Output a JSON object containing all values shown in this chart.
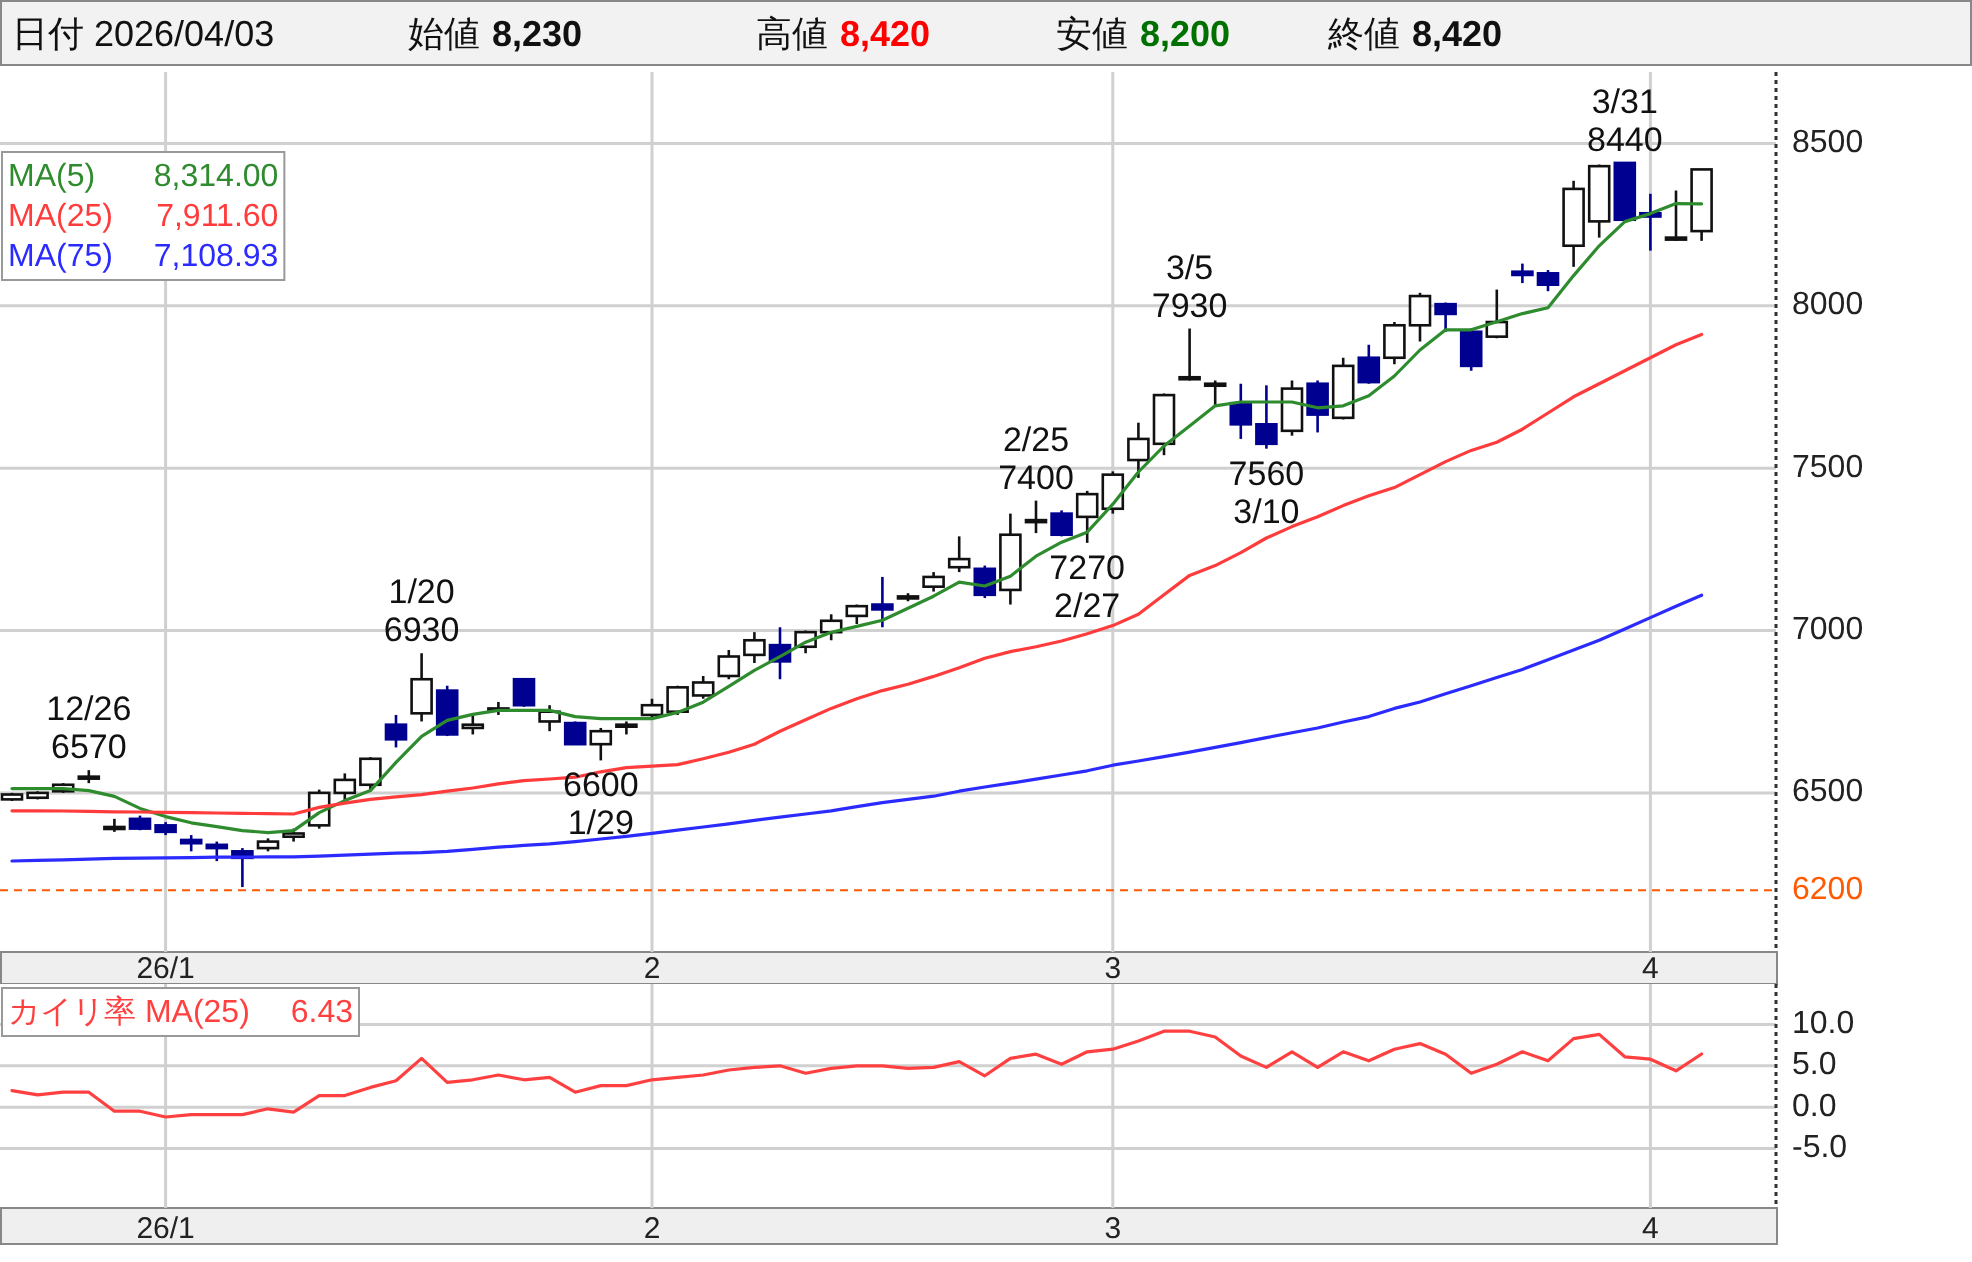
{
  "chart_data": [
    {
      "type": "candlestick",
      "title": "日付 2026/04/03",
      "annotations": [
        "始値 8,230",
        "高値 8,420",
        "安値 8,200",
        "終値 8,420",
        {
          "text": "12/26\n6570",
          "y": 6570
        },
        {
          "text": "1/20\n6930",
          "y": 6930
        },
        {
          "text": "6600\n1/29",
          "y": 6600
        },
        {
          "text": "2/25\n7400",
          "y": 7400
        },
        {
          "text": "7270\n2/27",
          "y": 7270
        },
        {
          "text": "3/5\n7930",
          "y": 7930
        },
        {
          "text": "7560\n3/10",
          "y": 7560
        },
        {
          "text": "3/31\n8440",
          "y": 8440
        }
      ],
      "categories": [
        null,
        null,
        null,
        null,
        null,
        null,
        "26/1",
        null,
        null,
        null,
        null,
        null,
        null,
        null,
        null,
        null,
        null,
        null,
        null,
        null,
        null,
        null,
        null,
        null,
        null,
        "2",
        null,
        null,
        null,
        null,
        null,
        null,
        null,
        null,
        null,
        null,
        null,
        null,
        null,
        null,
        null,
        null,
        null,
        "3",
        null,
        null,
        null,
        null,
        null,
        null,
        null,
        null,
        null,
        null,
        null,
        null,
        null,
        null,
        null,
        null,
        null,
        null,
        null,
        null,
        "4",
        null,
        null
      ],
      "ohlc": [
        [
          6480,
          6500,
          6475,
          6495
        ],
        [
          6485,
          6505,
          6480,
          6500
        ],
        [
          6505,
          6530,
          6500,
          6525
        ],
        [
          6545,
          6570,
          6530,
          6550
        ],
        [
          6390,
          6420,
          6380,
          6395
        ],
        [
          6420,
          6430,
          6385,
          6390
        ],
        [
          6400,
          6410,
          6370,
          6380
        ],
        [
          6355,
          6370,
          6320,
          6345
        ],
        [
          6340,
          6350,
          6290,
          6330
        ],
        [
          6320,
          6330,
          6210,
          6300
        ],
        [
          6330,
          6360,
          6320,
          6350
        ],
        [
          6365,
          6390,
          6350,
          6375
        ],
        [
          6400,
          6510,
          6390,
          6500
        ],
        [
          6500,
          6560,
          6470,
          6540
        ],
        [
          6525,
          6610,
          6510,
          6605
        ],
        [
          6710,
          6740,
          6640,
          6665
        ],
        [
          6745,
          6930,
          6720,
          6850
        ],
        [
          6815,
          6830,
          6675,
          6680
        ],
        [
          6700,
          6740,
          6680,
          6710
        ],
        [
          6755,
          6780,
          6740,
          6760
        ],
        [
          6850,
          6850,
          6765,
          6770
        ],
        [
          6720,
          6770,
          6690,
          6750
        ],
        [
          6715,
          6720,
          6650,
          6650
        ],
        [
          6650,
          6700,
          6600,
          6690
        ],
        [
          6705,
          6720,
          6680,
          6710
        ],
        [
          6740,
          6790,
          6730,
          6770
        ],
        [
          6750,
          6830,
          6740,
          6825
        ],
        [
          6800,
          6860,
          6790,
          6840
        ],
        [
          6860,
          6940,
          6850,
          6920
        ],
        [
          6925,
          6995,
          6900,
          6970
        ],
        [
          6955,
          7010,
          6850,
          6905
        ],
        [
          6950,
          7000,
          6930,
          6995
        ],
        [
          6995,
          7050,
          6970,
          7030
        ],
        [
          7045,
          7080,
          7020,
          7075
        ],
        [
          7080,
          7165,
          7010,
          7065
        ],
        [
          7100,
          7115,
          7090,
          7105
        ],
        [
          7135,
          7180,
          7120,
          7165
        ],
        [
          7195,
          7290,
          7180,
          7220
        ],
        [
          7190,
          7200,
          7100,
          7110
        ],
        [
          7125,
          7360,
          7080,
          7295
        ],
        [
          7335,
          7400,
          7300,
          7340
        ],
        [
          7360,
          7370,
          7290,
          7295
        ],
        [
          7350,
          7430,
          7270,
          7420
        ],
        [
          7375,
          7490,
          7360,
          7480
        ],
        [
          7525,
          7640,
          7470,
          7590
        ],
        [
          7575,
          7730,
          7540,
          7725
        ],
        [
          7775,
          7930,
          7770,
          7780
        ],
        [
          7755,
          7770,
          7690,
          7760
        ],
        [
          7700,
          7760,
          7590,
          7635
        ],
        [
          7635,
          7755,
          7560,
          7575
        ],
        [
          7615,
          7770,
          7600,
          7745
        ],
        [
          7760,
          7770,
          7610,
          7665
        ],
        [
          7655,
          7840,
          7650,
          7815
        ],
        [
          7840,
          7880,
          7760,
          7765
        ],
        [
          7840,
          7950,
          7820,
          7940
        ],
        [
          7940,
          8040,
          7890,
          8030
        ],
        [
          8005,
          8010,
          7920,
          7975
        ],
        [
          7920,
          7930,
          7800,
          7815
        ],
        [
          7905,
          8050,
          7900,
          7950
        ],
        [
          8105,
          8130,
          8070,
          8095
        ],
        [
          8100,
          8110,
          8045,
          8065
        ],
        [
          8185,
          8385,
          8120,
          8360
        ],
        [
          8260,
          8435,
          8210,
          8430
        ],
        [
          8440,
          8440,
          8260,
          8265
        ],
        [
          8285,
          8345,
          8170,
          8275
        ],
        [
          8205,
          8355,
          8200,
          8210
        ],
        [
          8230,
          8420,
          8200,
          8420
        ]
      ],
      "series": [
        {
          "type": "line",
          "name": "MA(5) 8,314.00",
          "color": "#2e8b2e",
          "values": [
            6513,
            6513,
            6513,
            6507,
            6489,
            6452,
            6427,
            6408,
            6396,
            6384,
            6378,
            6384,
            6439,
            6476,
            6507,
            6594,
            6674,
            6723,
            6742,
            6754,
            6754,
            6754,
            6735,
            6729,
            6729,
            6729,
            6748,
            6779,
            6828,
            6877,
            6920,
            6964,
            6995,
            7013,
            7032,
            7069,
            7106,
            7149,
            7137,
            7167,
            7229,
            7272,
            7303,
            7389,
            7488,
            7568,
            7630,
            7692,
            7704,
            7704,
            7704,
            7686,
            7692,
            7723,
            7784,
            7864,
            7926,
            7926,
            7951,
            7976,
            7994,
            8093,
            8185,
            8259,
            8284,
            8315,
            8314
          ]
        },
        {
          "type": "line",
          "name": "MA(25) 7,911.60",
          "color": "#ff3b3b",
          "values": [
            6445,
            6445,
            6444,
            6443,
            6442,
            6441,
            6440,
            6439,
            6438,
            6437,
            6436,
            6435,
            6455,
            6468,
            6480,
            6488,
            6495,
            6505,
            6515,
            6528,
            6538,
            6543,
            6548,
            6565,
            6578,
            6582,
            6587,
            6605,
            6625,
            6650,
            6690,
            6725,
            6760,
            6790,
            6815,
            6835,
            6859,
            6885,
            6915,
            6935,
            6950,
            6968,
            6990,
            7015,
            7050,
            7110,
            7170,
            7200,
            7240,
            7285,
            7320,
            7350,
            7385,
            7415,
            7440,
            7480,
            7520,
            7555,
            7580,
            7620,
            7670,
            7720,
            7760,
            7800,
            7840,
            7880,
            7912
          ]
        },
        {
          "type": "line",
          "name": "MA(75) 7,108.93",
          "color": "#2b2bff",
          "values": [
            6290,
            6292,
            6294,
            6296,
            6298,
            6299,
            6300,
            6301,
            6302,
            6302,
            6303,
            6303,
            6305,
            6308,
            6311,
            6314,
            6316,
            6320,
            6326,
            6333,
            6338,
            6343,
            6350,
            6358,
            6366,
            6375,
            6385,
            6395,
            6405,
            6415,
            6425,
            6435,
            6445,
            6458,
            6470,
            6480,
            6490,
            6505,
            6518,
            6530,
            6542,
            6555,
            6568,
            6585,
            6598,
            6612,
            6625,
            6640,
            6655,
            6670,
            6685,
            6700,
            6718,
            6735,
            6760,
            6780,
            6805,
            6830,
            6855,
            6880,
            6910,
            6940,
            6970,
            7005,
            7040,
            7075,
            7109
          ]
        }
      ],
      "ylim": [
        6010,
        8720
      ],
      "yticks": [
        6500,
        7000,
        7500,
        8000,
        8500
      ],
      "ref_lines": [
        {
          "axis": "y",
          "value": 6200,
          "label": "6200",
          "color": "#ff5a00",
          "line_style": "dashed"
        }
      ],
      "grid": true
    },
    {
      "type": "line",
      "categories": [
        null,
        null,
        null,
        null,
        null,
        null,
        "26/1",
        null,
        null,
        null,
        null,
        null,
        null,
        null,
        null,
        null,
        null,
        null,
        null,
        null,
        null,
        null,
        null,
        null,
        null,
        "2",
        null,
        null,
        null,
        null,
        null,
        null,
        null,
        null,
        null,
        null,
        null,
        null,
        null,
        null,
        null,
        null,
        null,
        "3",
        null,
        null,
        null,
        null,
        null,
        null,
        null,
        null,
        null,
        null,
        null,
        null,
        null,
        null,
        null,
        null,
        null,
        null,
        null,
        null,
        "4",
        null,
        null
      ],
      "series": [
        {
          "name": "カイリ率 MA(25) 6.43",
          "color": "#ff4040",
          "values": [
            2.0,
            1.5,
            1.8,
            1.8,
            -0.5,
            -0.5,
            -1.2,
            -0.9,
            -0.9,
            -0.9,
            -0.2,
            -0.6,
            1.4,
            1.4,
            2.4,
            3.2,
            5.9,
            3.0,
            3.3,
            3.9,
            3.3,
            3.6,
            1.8,
            2.6,
            2.6,
            3.3,
            3.6,
            3.9,
            4.5,
            4.8,
            5.0,
            4.1,
            4.7,
            5.0,
            5.0,
            4.7,
            4.8,
            5.5,
            3.8,
            5.9,
            6.4,
            5.2,
            6.7,
            7.0,
            8.0,
            9.2,
            9.2,
            8.5,
            6.2,
            4.8,
            6.7,
            4.8,
            6.7,
            5.6,
            7.0,
            7.7,
            6.4,
            4.1,
            5.2,
            6.7,
            5.6,
            8.3,
            8.8,
            6.1,
            5.8,
            4.4,
            6.43
          ]
        }
      ],
      "ylim": [
        -12.2,
        14.9
      ],
      "yticks": [
        {
          "value": 10,
          "label": "10.0"
        },
        {
          "value": 5,
          "label": "5.0"
        },
        {
          "value": 0,
          "label": "0.0"
        },
        {
          "value": -5,
          "label": "-5.0"
        }
      ],
      "grid": true
    }
  ]
}
